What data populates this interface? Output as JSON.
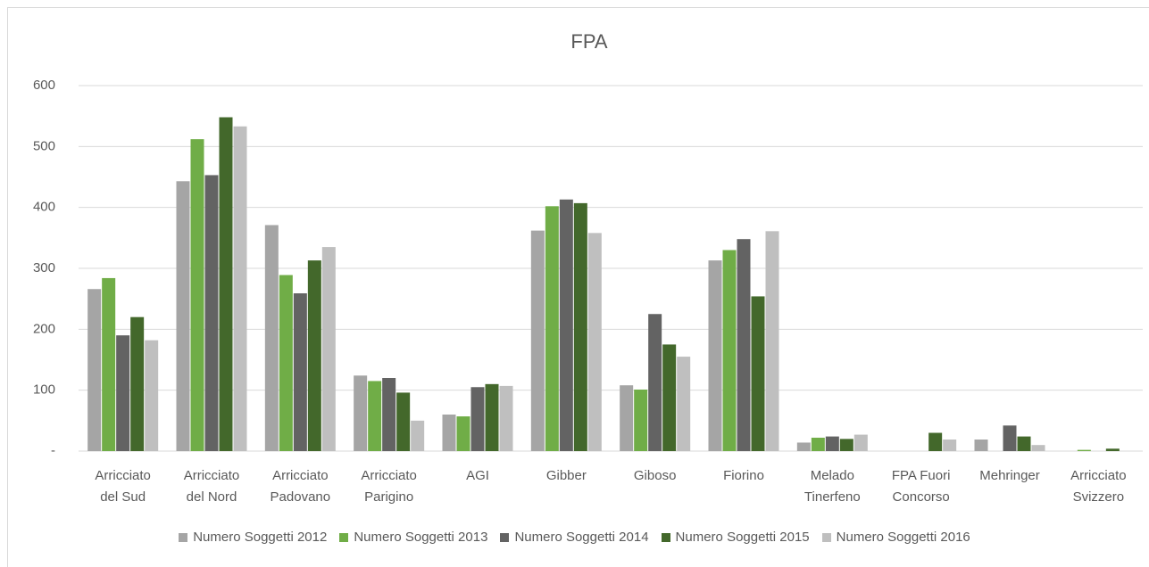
{
  "chart_data": {
    "type": "bar",
    "title": "FPA",
    "categories": [
      "Arricciato del Sud",
      "Arricciato del Nord",
      "Arricciato Padovano",
      "Arricciato Parigino",
      "AGI",
      "Gibber",
      "Giboso",
      "Fiorino",
      "Melado Tinerfeno",
      "FPA Fuori Concorso",
      "Mehringer",
      "Arricciato Svizzero"
    ],
    "series": [
      {
        "name": "Numero Soggetti 2012",
        "color": "#a5a5a5",
        "values": [
          266,
          443,
          371,
          124,
          60,
          362,
          108,
          313,
          14,
          null,
          19,
          null
        ]
      },
      {
        "name": "Numero Soggetti 2013",
        "color": "#70ad47",
        "values": [
          284,
          512,
          289,
          115,
          57,
          402,
          101,
          330,
          22,
          null,
          null,
          2
        ]
      },
      {
        "name": "Numero Soggetti 2014",
        "color": "#636363",
        "values": [
          190,
          453,
          259,
          120,
          105,
          413,
          225,
          348,
          24,
          null,
          42,
          null
        ]
      },
      {
        "name": "Numero Soggetti 2015",
        "color": "#43682b",
        "values": [
          220,
          548,
          313,
          96,
          110,
          407,
          175,
          254,
          20,
          30,
          24,
          4
        ]
      },
      {
        "name": "Numero Soggetti 2016",
        "color": "#bfbfbf",
        "values": [
          182,
          533,
          335,
          50,
          107,
          358,
          155,
          361,
          27,
          19,
          10,
          null
        ]
      }
    ],
    "ylim": [
      0,
      600
    ],
    "yticks": [
      {
        "value": 0,
        "label": "-"
      },
      100,
      200,
      300,
      400,
      500,
      600
    ],
    "grid": true,
    "legend": "bottom"
  }
}
